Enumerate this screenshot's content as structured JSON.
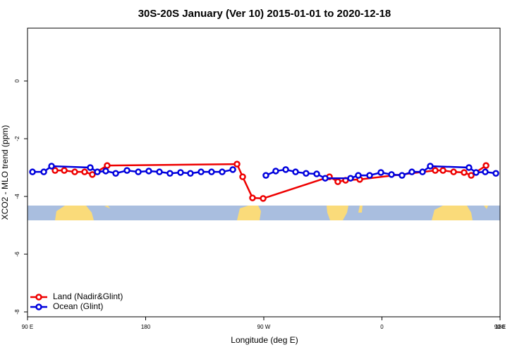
{
  "chart_data": {
    "type": "line",
    "title": "30S-20S January (Ver 10)   2015-01-01 to 2020-12-18",
    "x_label": "Longitude (deg E)",
    "y_label": "XCO2 - MLO trend (ppm)",
    "xlim": [
      90,
      450
    ],
    "xticks": [
      {
        "value": 90,
        "label": "90 E"
      },
      {
        "value": 180,
        "label": "180"
      },
      {
        "value": 270,
        "label": "90 W"
      },
      {
        "value": 360,
        "label": "0"
      },
      {
        "value": 450,
        "label": "90 E"
      },
      {
        "value": 540,
        "label": "180"
      }
    ],
    "ylim": [
      -8.17,
      1.83
    ],
    "yticks": [
      0,
      -2,
      -4,
      -6,
      -8
    ],
    "legend": "bottom-left",
    "series": [
      {
        "name": "Land (Nadir&Glint)",
        "color": "#ee0000",
        "x": [
          111,
          118,
          126,
          133.5,
          139.4,
          150.7,
          249.6,
          253.9,
          261.4,
          269.5,
          320,
          326.4,
          332.3,
          343.1,
          400.6,
          406.5,
          414.6,
          422.6,
          428,
          439.3
        ],
        "values": [
          -3.1,
          -3.1,
          -3.15,
          -3.15,
          -3.24,
          -2.93,
          -2.88,
          -3.32,
          -4.05,
          -4.07,
          -3.32,
          -3.49,
          -3.44,
          -3.41,
          -3.1,
          -3.1,
          -3.15,
          -3.17,
          -3.27,
          -2.93
        ]
      },
      {
        "name": "Ocean (Glint)",
        "color": "#0000dd",
        "x": [
          93.8,
          102.4,
          108.3,
          137.8,
          143.2,
          149.6,
          157.2,
          165.8,
          174.4,
          182.4,
          190.5,
          198.5,
          206.6,
          214.1,
          222.2,
          230.2,
          238.3,
          246.4,
          260,
          271.6,
          279.1,
          286.7,
          294.2,
          302.2,
          310.3,
          316.8,
          336.1,
          342,
          350.6,
          359.2,
          367.3,
          375.3,
          382.8,
          390.9,
          396.8,
          426.3,
          431.7,
          438.7,
          446.8
        ],
        "values": [
          -3.15,
          -3.15,
          -2.95,
          -3.0,
          -3.15,
          -3.12,
          -3.2,
          -3.1,
          -3.15,
          -3.12,
          -3.15,
          -3.2,
          -3.17,
          -3.2,
          -3.15,
          -3.15,
          -3.15,
          -3.07,
          null,
          -3.27,
          -3.12,
          -3.07,
          -3.15,
          -3.2,
          -3.22,
          -3.37,
          -3.37,
          -3.27,
          -3.27,
          -3.17,
          -3.24,
          -3.27,
          -3.15,
          -3.15,
          -2.95,
          -3.0,
          -3.17,
          -3.15,
          -3.2
        ]
      }
    ]
  }
}
